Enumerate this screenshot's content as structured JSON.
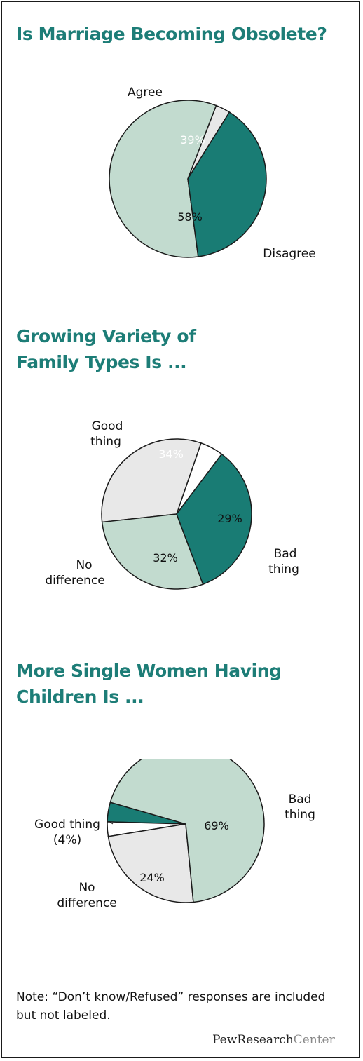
{
  "note": "Note: “Don’t know/Refused” responses are included but not labeled.",
  "logo": {
    "part1": "PewResearch",
    "part2": "Center"
  },
  "colors": {
    "title": "#1d7d77",
    "teal": "#197c74",
    "light_green": "#c2dbcf",
    "light_gray": "#e8e8e8",
    "white": "#ffffff",
    "stroke": "#1a1a1a"
  },
  "chart_data": [
    {
      "type": "pie",
      "title": "Is Marriage Becoming Obsolete?",
      "slices": [
        {
          "name": "Agree",
          "value": 39,
          "label": "39%",
          "color": "teal"
        },
        {
          "name": "Disagree",
          "value": 58,
          "label": "58%",
          "color": "light_green"
        },
        {
          "name": "",
          "value": 3,
          "label": "",
          "color": "light_gray"
        }
      ],
      "callouts": [
        "Agree",
        "Disagree"
      ]
    },
    {
      "type": "pie",
      "title": "Growing Variety of Family Types Is ...",
      "slices": [
        {
          "name": "Good thing",
          "value": 34,
          "label": "34%",
          "color": "teal"
        },
        {
          "name": "Bad thing",
          "value": 29,
          "label": "29%",
          "color": "light_green"
        },
        {
          "name": "No difference",
          "value": 32,
          "label": "32%",
          "color": "light_gray"
        },
        {
          "name": "",
          "value": 5,
          "label": "",
          "color": "white"
        }
      ],
      "callouts": [
        "Good thing",
        "Bad thing",
        "No difference"
      ]
    },
    {
      "type": "pie",
      "title": "More Single Women Having Children Is ...",
      "slices": [
        {
          "name": "Bad thing",
          "value": 69,
          "label": "69%",
          "color": "light_green"
        },
        {
          "name": "No difference",
          "value": 24,
          "label": "24%",
          "color": "light_gray"
        },
        {
          "name": "",
          "value": 3,
          "label": "",
          "color": "white"
        },
        {
          "name": "Good thing",
          "value": 4,
          "label": "",
          "color": "teal"
        }
      ],
      "callouts": [
        "Bad thing",
        "Good thing (4%)",
        "No difference"
      ]
    }
  ]
}
